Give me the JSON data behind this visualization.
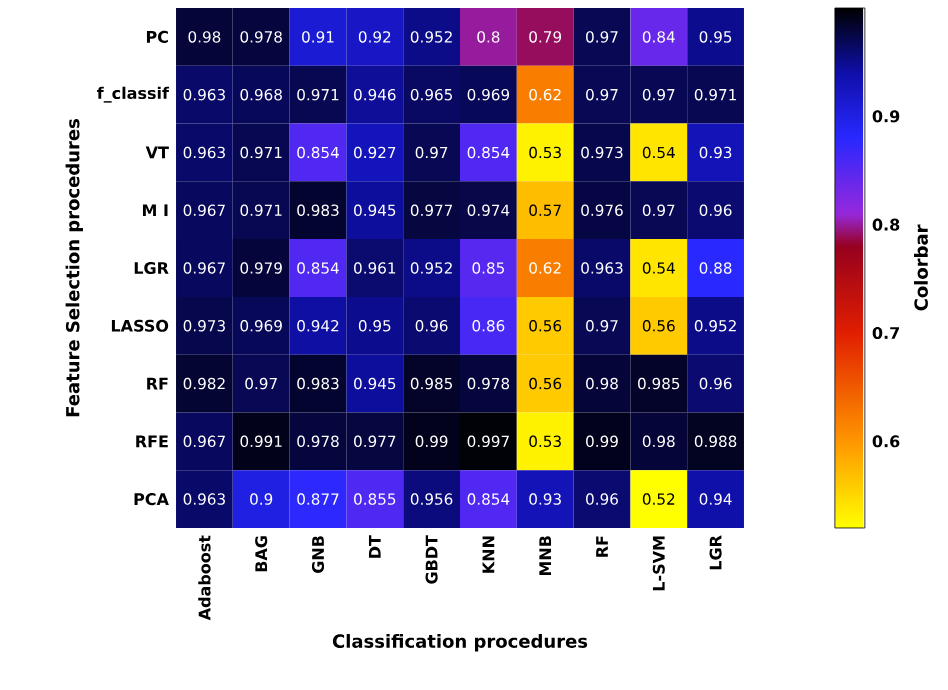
{
  "chart_data": {
    "type": "heatmap",
    "xlabel": "Classification procedures",
    "ylabel": "Feature Selection procedures",
    "clabel": "Colorbar",
    "categories": [
      "Adaboost",
      "BAG",
      "GNB",
      "DT",
      "GBDT",
      "KNN",
      "MNB",
      "RF",
      "L-SVM",
      "LGR"
    ],
    "y_categories": [
      "PC",
      "f_classif",
      "VT",
      "M I",
      "LGR",
      "LASSO",
      "RF",
      "RFE",
      "PCA"
    ],
    "cells": [
      [
        0.98,
        0.978,
        0.91,
        0.92,
        0.952,
        0.8,
        0.79,
        0.97,
        0.84,
        0.95
      ],
      [
        0.963,
        0.968,
        0.971,
        0.946,
        0.965,
        0.969,
        0.62,
        0.97,
        0.97,
        0.971
      ],
      [
        0.963,
        0.971,
        0.854,
        0.927,
        0.97,
        0.854,
        0.53,
        0.973,
        0.54,
        0.93
      ],
      [
        0.967,
        0.971,
        0.983,
        0.945,
        0.977,
        0.974,
        0.57,
        0.976,
        0.97,
        0.96
      ],
      [
        0.967,
        0.979,
        0.854,
        0.961,
        0.952,
        0.85,
        0.62,
        0.963,
        0.54,
        0.88
      ],
      [
        0.973,
        0.969,
        0.942,
        0.95,
        0.96,
        0.86,
        0.56,
        0.97,
        0.56,
        0.952
      ],
      [
        0.982,
        0.97,
        0.983,
        0.945,
        0.985,
        0.978,
        0.56,
        0.98,
        0.985,
        0.96
      ],
      [
        0.967,
        0.991,
        0.978,
        0.977,
        0.99,
        0.997,
        0.53,
        0.99,
        0.98,
        0.988
      ],
      [
        0.963,
        0.9,
        0.877,
        0.855,
        0.956,
        0.854,
        0.93,
        0.96,
        0.52,
        0.94
      ]
    ],
    "data_labels": true,
    "clim": [
      0.52,
      1.0
    ],
    "cticks": [
      0.6,
      0.7,
      0.8,
      0.9
    ]
  }
}
